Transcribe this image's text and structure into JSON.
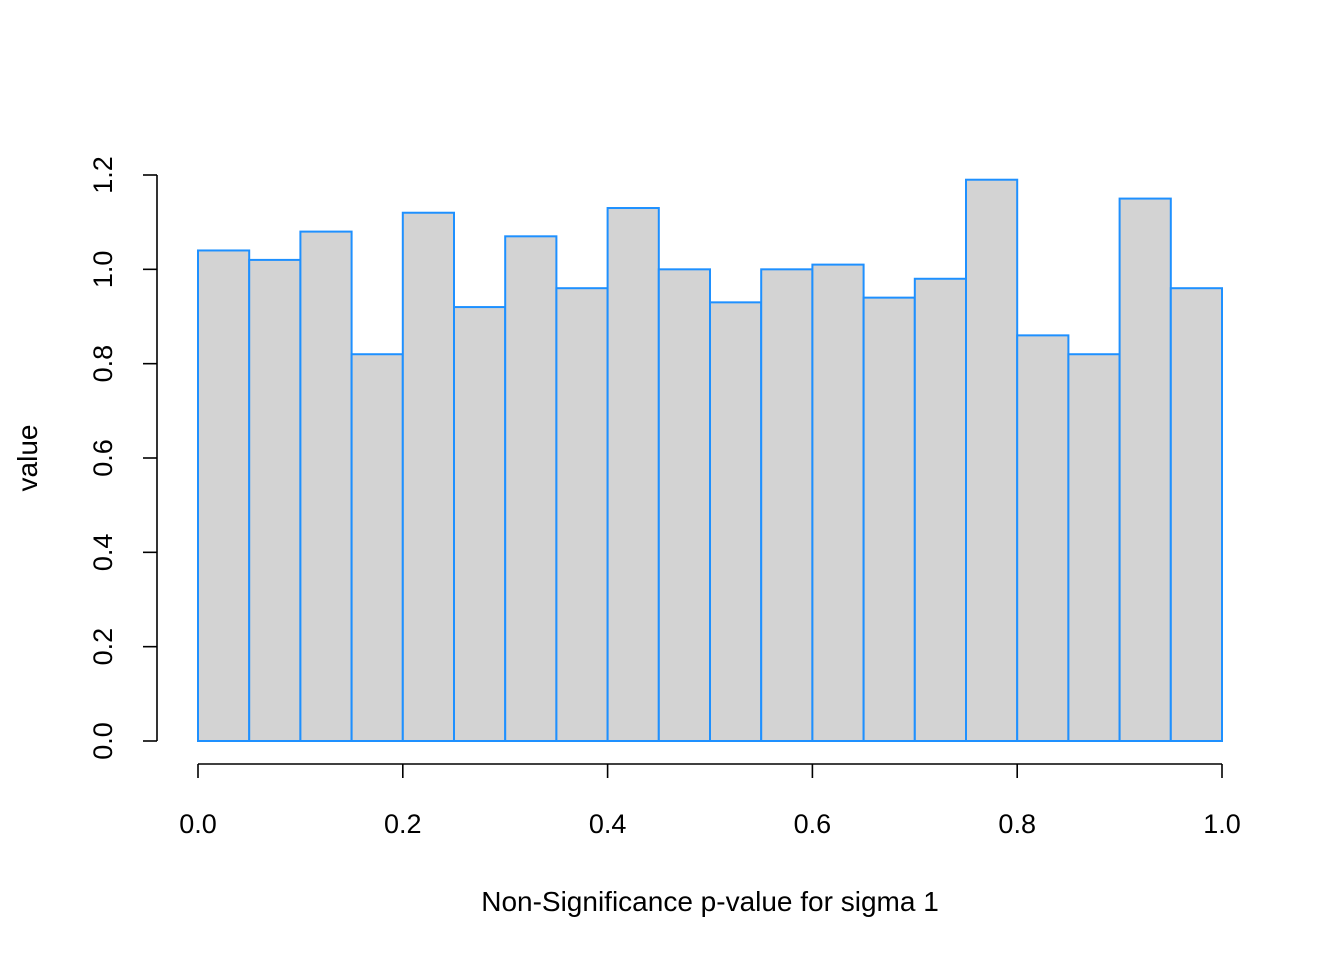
{
  "chart_data": {
    "type": "bar",
    "subtype": "histogram",
    "xlabel": "Non-Significance p-value for sigma 1",
    "ylabel": "value",
    "bin_width": 0.05,
    "x_bins": [
      [
        0.0,
        0.05
      ],
      [
        0.05,
        0.1
      ],
      [
        0.1,
        0.15
      ],
      [
        0.15,
        0.2
      ],
      [
        0.2,
        0.25
      ],
      [
        0.25,
        0.3
      ],
      [
        0.3,
        0.35
      ],
      [
        0.35,
        0.4
      ],
      [
        0.4,
        0.45
      ],
      [
        0.45,
        0.5
      ],
      [
        0.5,
        0.55
      ],
      [
        0.55,
        0.6
      ],
      [
        0.6,
        0.65
      ],
      [
        0.65,
        0.7
      ],
      [
        0.7,
        0.75
      ],
      [
        0.75,
        0.8
      ],
      [
        0.8,
        0.85
      ],
      [
        0.85,
        0.9
      ],
      [
        0.9,
        0.95
      ],
      [
        0.95,
        1.0
      ]
    ],
    "values": [
      1.04,
      1.02,
      1.08,
      0.82,
      1.12,
      0.92,
      1.07,
      0.96,
      1.13,
      1.0,
      0.93,
      1.0,
      1.01,
      0.94,
      0.98,
      1.19,
      0.86,
      0.82,
      1.15,
      0.96
    ],
    "xlim": [
      0,
      1
    ],
    "ylim": [
      0,
      1.2
    ],
    "x_ticks": [
      "0.0",
      "0.2",
      "0.4",
      "0.6",
      "0.8",
      "1.0"
    ],
    "y_ticks": [
      "0.0",
      "0.2",
      "0.4",
      "0.6",
      "0.8",
      "1.0",
      "1.2"
    ],
    "bar_fill": "#d3d3d3",
    "bar_border": "#1e90ff",
    "grid": false
  }
}
